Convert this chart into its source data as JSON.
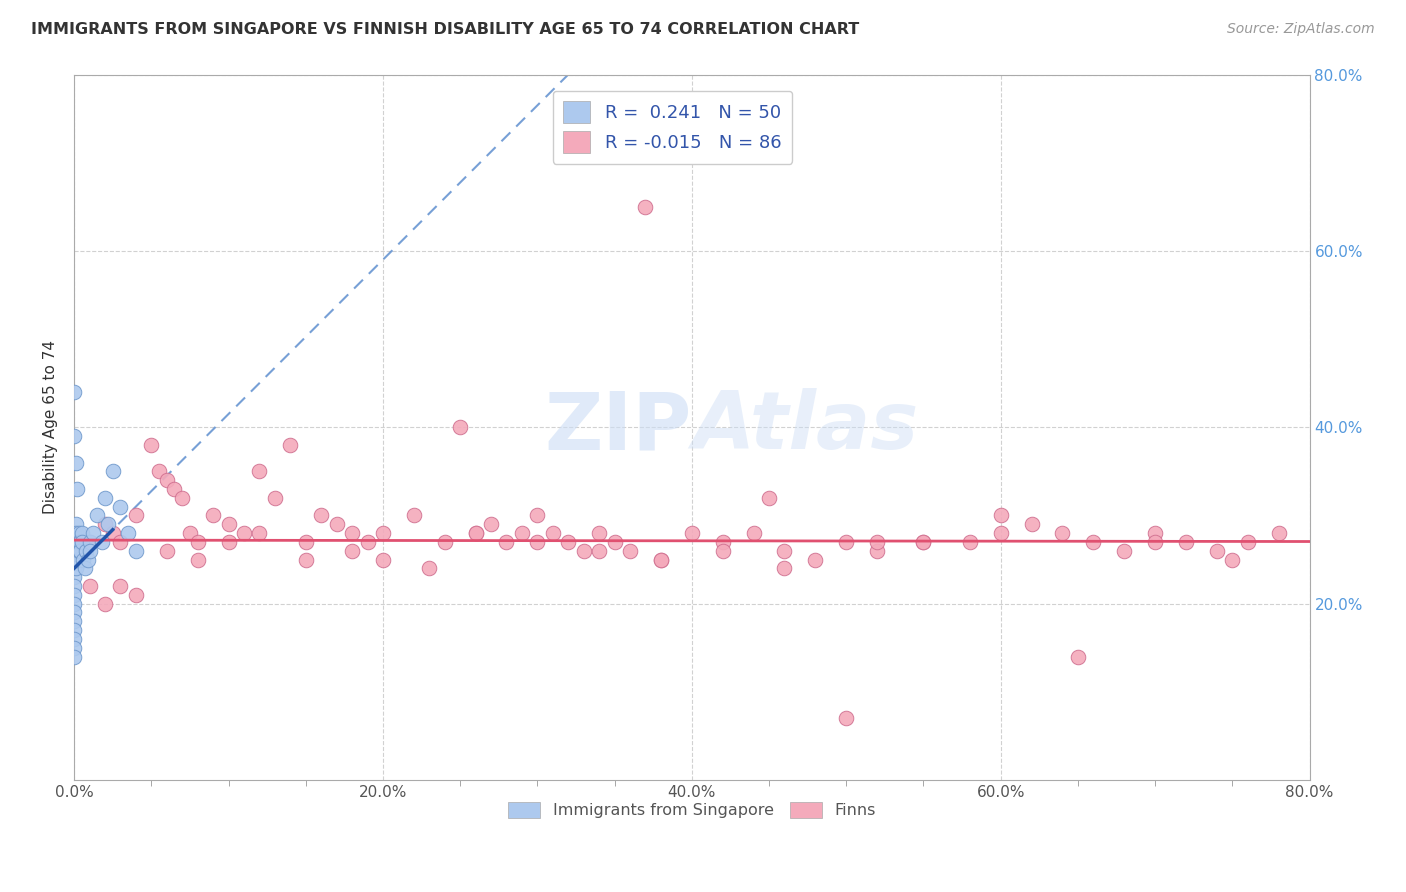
{
  "title": "IMMIGRANTS FROM SINGAPORE VS FINNISH DISABILITY AGE 65 TO 74 CORRELATION CHART",
  "source": "Source: ZipAtlas.com",
  "ylabel": "Disability Age 65 to 74",
  "xlim": [
    0.0,
    0.8
  ],
  "ylim": [
    0.0,
    0.8
  ],
  "xtick_vals": [
    0.0,
    0.2,
    0.4,
    0.6,
    0.8
  ],
  "ytick_vals": [
    0.2,
    0.4,
    0.6,
    0.8
  ],
  "singapore_R": 0.241,
  "singapore_N": 50,
  "finns_R": -0.015,
  "finns_N": 86,
  "singapore_color": "#adc9ee",
  "singapore_edge": "#7099cc",
  "finns_color": "#f4aabb",
  "finns_edge": "#d07090",
  "trend_singapore_color": "#5588cc",
  "trend_finns_color": "#e05070",
  "background_color": "#ffffff",
  "grid_color": "#cccccc",
  "right_axis_color": "#5599dd",
  "legend_color": "#3355aa",
  "watermark_color": "#ccddf5",
  "sg_x": [
    0.0,
    0.0,
    0.0,
    0.0,
    0.0,
    0.0,
    0.0,
    0.0,
    0.0,
    0.0,
    0.0,
    0.0,
    0.0,
    0.0,
    0.0,
    0.001,
    0.001,
    0.001,
    0.001,
    0.001,
    0.001,
    0.002,
    0.002,
    0.002,
    0.003,
    0.003,
    0.003,
    0.004,
    0.004,
    0.005,
    0.005,
    0.006,
    0.007,
    0.008,
    0.009,
    0.01,
    0.01,
    0.012,
    0.015,
    0.018,
    0.02,
    0.022,
    0.025,
    0.03,
    0.035,
    0.04,
    0.0,
    0.0,
    0.001,
    0.002
  ],
  "sg_y": [
    0.28,
    0.27,
    0.26,
    0.25,
    0.24,
    0.23,
    0.22,
    0.21,
    0.2,
    0.19,
    0.18,
    0.17,
    0.16,
    0.15,
    0.14,
    0.29,
    0.28,
    0.27,
    0.26,
    0.25,
    0.24,
    0.27,
    0.26,
    0.25,
    0.28,
    0.27,
    0.26,
    0.27,
    0.26,
    0.28,
    0.27,
    0.25,
    0.24,
    0.26,
    0.25,
    0.27,
    0.26,
    0.28,
    0.3,
    0.27,
    0.32,
    0.29,
    0.35,
    0.31,
    0.28,
    0.26,
    0.44,
    0.39,
    0.36,
    0.33
  ],
  "fi_x": [
    0.01,
    0.02,
    0.025,
    0.03,
    0.04,
    0.05,
    0.055,
    0.06,
    0.065,
    0.07,
    0.075,
    0.08,
    0.09,
    0.1,
    0.11,
    0.12,
    0.13,
    0.14,
    0.15,
    0.16,
    0.17,
    0.18,
    0.19,
    0.2,
    0.22,
    0.24,
    0.25,
    0.26,
    0.27,
    0.28,
    0.29,
    0.3,
    0.31,
    0.32,
    0.33,
    0.34,
    0.35,
    0.36,
    0.38,
    0.4,
    0.42,
    0.44,
    0.46,
    0.48,
    0.5,
    0.52,
    0.55,
    0.58,
    0.6,
    0.62,
    0.64,
    0.66,
    0.68,
    0.7,
    0.72,
    0.74,
    0.76,
    0.78,
    0.01,
    0.02,
    0.03,
    0.04,
    0.06,
    0.08,
    0.1,
    0.12,
    0.15,
    0.18,
    0.2,
    0.23,
    0.26,
    0.3,
    0.34,
    0.38,
    0.42,
    0.46,
    0.5,
    0.55,
    0.6,
    0.65,
    0.7,
    0.75,
    0.37,
    0.45,
    0.52
  ],
  "fi_y": [
    0.27,
    0.29,
    0.28,
    0.27,
    0.3,
    0.38,
    0.35,
    0.34,
    0.33,
    0.32,
    0.28,
    0.27,
    0.3,
    0.29,
    0.28,
    0.35,
    0.32,
    0.38,
    0.27,
    0.3,
    0.29,
    0.28,
    0.27,
    0.28,
    0.3,
    0.27,
    0.4,
    0.28,
    0.29,
    0.27,
    0.28,
    0.3,
    0.28,
    0.27,
    0.26,
    0.28,
    0.27,
    0.26,
    0.25,
    0.28,
    0.27,
    0.28,
    0.26,
    0.25,
    0.27,
    0.26,
    0.27,
    0.27,
    0.3,
    0.29,
    0.28,
    0.27,
    0.26,
    0.28,
    0.27,
    0.26,
    0.27,
    0.28,
    0.22,
    0.2,
    0.22,
    0.21,
    0.26,
    0.25,
    0.27,
    0.28,
    0.25,
    0.26,
    0.25,
    0.24,
    0.28,
    0.27,
    0.26,
    0.25,
    0.26,
    0.24,
    0.07,
    0.27,
    0.28,
    0.14,
    0.27,
    0.25,
    0.65,
    0.32,
    0.27
  ]
}
